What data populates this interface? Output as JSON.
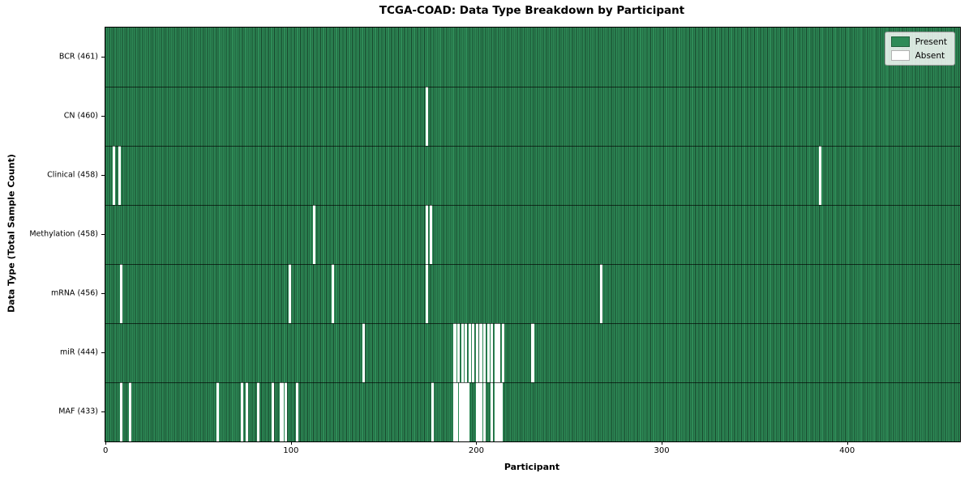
{
  "title": "TCGA-COAD: Data Type Breakdown by Participant",
  "axes": {
    "xlabel": "Participant",
    "ylabel": "Data Type (Total Sample Count)"
  },
  "legend": {
    "present_label": "Present",
    "absent_label": "Absent",
    "position": "upper right"
  },
  "colors": {
    "present": "#2e8b57",
    "absent": "#ffffff",
    "bar_edge": "rgba(0,0,0,0.5)",
    "separator": "rgba(0,0,0,0.65)"
  },
  "chart_data": {
    "type": "heatmap",
    "title": "TCGA-COAD: Data Type Breakdown by Participant",
    "xlabel": "Participant",
    "ylabel": "Data Type (Total Sample Count)",
    "legend_entries": [
      "Present",
      "Absent"
    ],
    "n_participants": 461,
    "x_axis": {
      "min": 0,
      "max": 461,
      "ticks": [
        0,
        100,
        200,
        300,
        400
      ]
    },
    "rows": [
      {
        "data_type": "BCR",
        "label": "BCR (461)",
        "total_samples": 461,
        "absent_participants": []
      },
      {
        "data_type": "CN",
        "label": "CN (460)",
        "total_samples": 460,
        "absent_participants": [
          173
        ]
      },
      {
        "data_type": "Clinical",
        "label": "Clinical (458)",
        "total_samples": 458,
        "absent_participants": [
          4,
          7,
          385
        ]
      },
      {
        "data_type": "Methylation",
        "label": "Methylation (458)",
        "total_samples": 458,
        "absent_participants": [
          112,
          173,
          175
        ]
      },
      {
        "data_type": "mRNA",
        "label": "mRNA (456)",
        "total_samples": 456,
        "absent_participants": [
          8,
          99,
          122,
          173,
          267
        ]
      },
      {
        "data_type": "miR",
        "label": "miR (444)",
        "total_samples": 444,
        "absent_participants": [
          139,
          188,
          190,
          192,
          194,
          196,
          198,
          200,
          202,
          204,
          206,
          208,
          210,
          211,
          212,
          214,
          230
        ]
      },
      {
        "data_type": "MAF",
        "label": "MAF (433)",
        "total_samples": 433,
        "absent_participants": [
          8,
          13,
          60,
          73,
          76,
          82,
          90,
          94,
          95,
          97,
          103,
          176,
          188,
          189,
          191,
          192,
          193,
          194,
          195,
          200,
          201,
          202,
          204,
          208,
          210,
          211,
          212,
          213
        ]
      }
    ]
  }
}
